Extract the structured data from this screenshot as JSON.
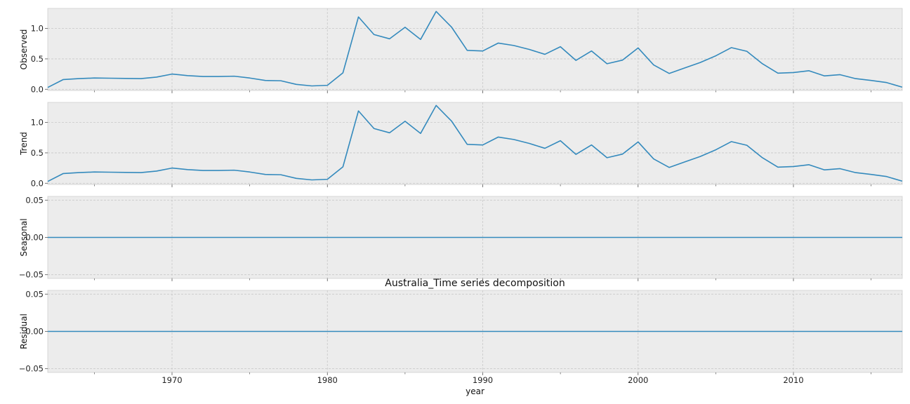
{
  "chart_data": {
    "type": "line",
    "title": "Australia_Time series decomposition",
    "xlabel": "year",
    "x_ticks": [
      "1970",
      "1980",
      "1990",
      "2000",
      "2010"
    ],
    "xlim": [
      1962,
      2017
    ],
    "x": [
      1962,
      1963,
      1964,
      1965,
      1966,
      1967,
      1968,
      1969,
      1970,
      1971,
      1972,
      1973,
      1974,
      1975,
      1976,
      1977,
      1978,
      1979,
      1980,
      1981,
      1982,
      1983,
      1984,
      1985,
      1986,
      1987,
      1988,
      1989,
      1990,
      1991,
      1992,
      1993,
      1994,
      1995,
      1996,
      1997,
      1998,
      1999,
      2000,
      2001,
      2002,
      2003,
      2004,
      2005,
      2006,
      2007,
      2008,
      2009,
      2010,
      2011,
      2012,
      2013,
      2014,
      2015,
      2016,
      2017
    ],
    "color": "#348abd",
    "grid": true,
    "panels": [
      {
        "ylabel": "Observed",
        "ylim": [
          -0.02,
          1.33
        ],
        "y_ticks": [
          0.0,
          0.5,
          1.0
        ],
        "y_tick_labels": [
          "0.0",
          "0.5",
          "1.0"
        ],
        "values": [
          0.03,
          0.16,
          0.175,
          0.185,
          0.182,
          0.178,
          0.175,
          0.2,
          0.25,
          0.225,
          0.21,
          0.21,
          0.215,
          0.185,
          0.145,
          0.14,
          0.08,
          0.055,
          0.065,
          0.27,
          1.19,
          0.9,
          0.83,
          1.02,
          0.82,
          1.28,
          1.02,
          0.64,
          0.63,
          0.76,
          0.72,
          0.655,
          0.575,
          0.7,
          0.475,
          0.63,
          0.42,
          0.48,
          0.68,
          0.4,
          0.26,
          0.35,
          0.44,
          0.55,
          0.685,
          0.625,
          0.42,
          0.265,
          0.275,
          0.305,
          0.22,
          0.24,
          0.175,
          0.145,
          0.11,
          0.035
        ]
      },
      {
        "ylabel": "Trend",
        "ylim": [
          -0.02,
          1.33
        ],
        "y_ticks": [
          0.0,
          0.5,
          1.0
        ],
        "y_tick_labels": [
          "0.0",
          "0.5",
          "1.0"
        ],
        "values": [
          0.03,
          0.16,
          0.175,
          0.185,
          0.182,
          0.178,
          0.175,
          0.2,
          0.25,
          0.225,
          0.21,
          0.21,
          0.215,
          0.185,
          0.145,
          0.14,
          0.08,
          0.055,
          0.065,
          0.27,
          1.19,
          0.9,
          0.83,
          1.02,
          0.82,
          1.28,
          1.02,
          0.64,
          0.63,
          0.76,
          0.72,
          0.655,
          0.575,
          0.7,
          0.475,
          0.63,
          0.42,
          0.48,
          0.68,
          0.4,
          0.26,
          0.35,
          0.44,
          0.55,
          0.685,
          0.625,
          0.42,
          0.265,
          0.275,
          0.305,
          0.22,
          0.24,
          0.175,
          0.145,
          0.11,
          0.035
        ]
      },
      {
        "ylabel": "Seasonal",
        "ylim": [
          -0.055,
          0.055
        ],
        "y_ticks": [
          -0.05,
          0.0,
          0.05
        ],
        "y_tick_labels": [
          "−0.05",
          "0.00",
          "0.05"
        ],
        "constant": 0.0
      },
      {
        "ylabel": "Residual",
        "ylim": [
          -0.055,
          0.055
        ],
        "y_ticks": [
          -0.05,
          0.0,
          0.05
        ],
        "y_tick_labels": [
          "−0.05",
          "0.00",
          "0.05"
        ],
        "constant": 0.0
      }
    ]
  }
}
